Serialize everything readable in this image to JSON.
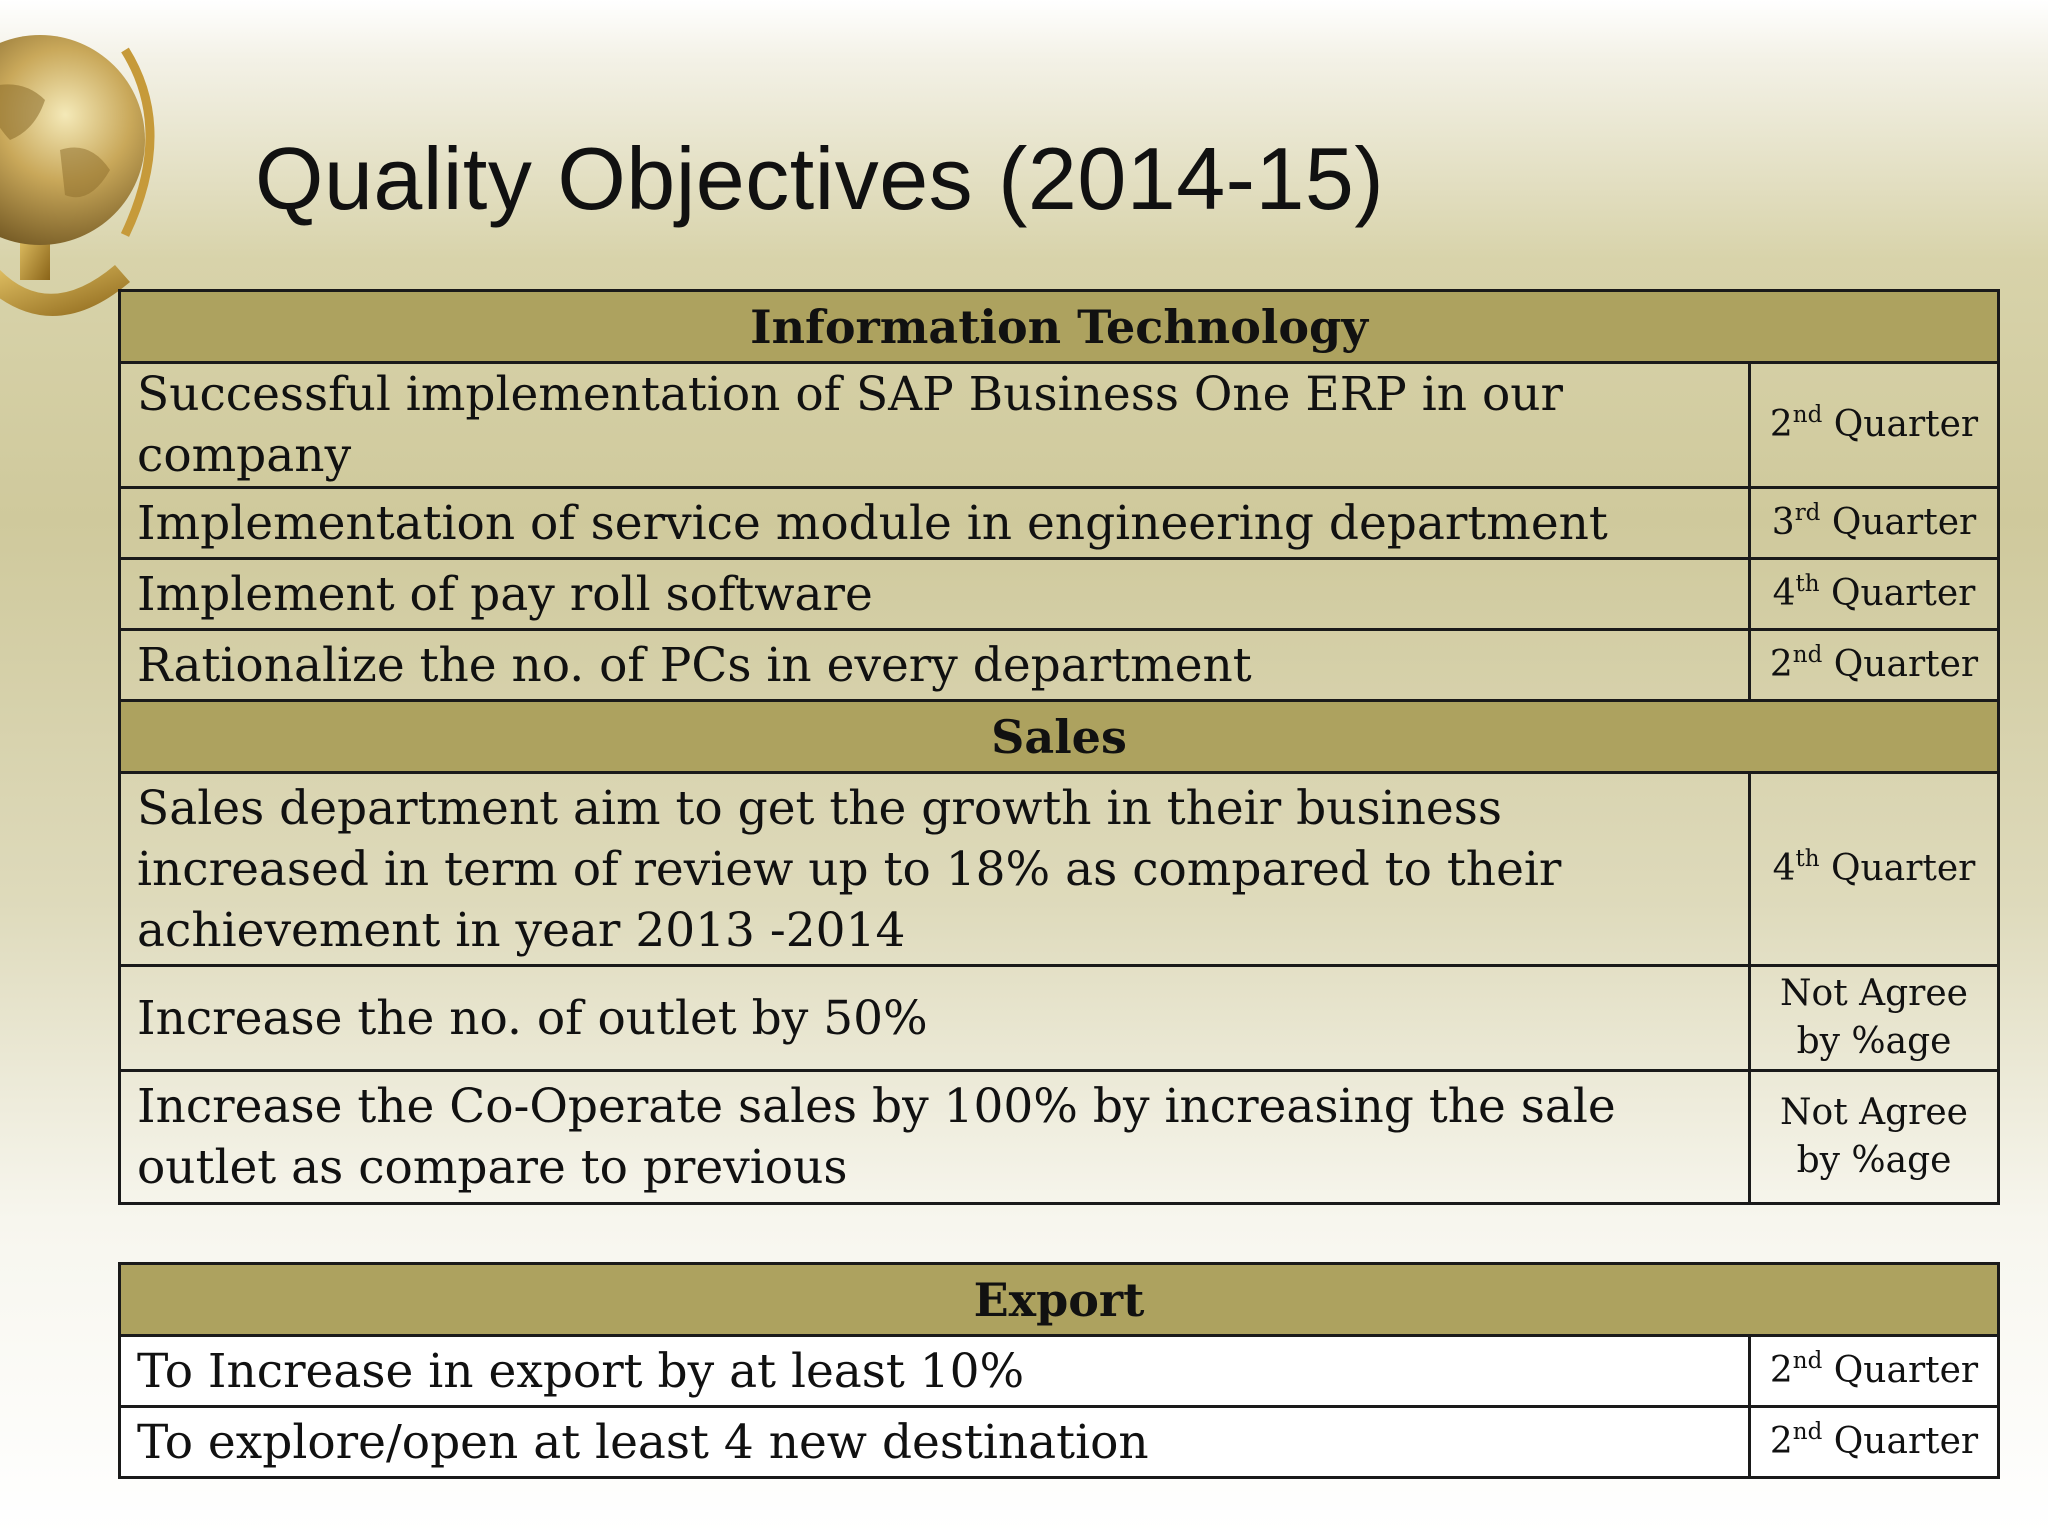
{
  "title": "Quality Objectives  (2014-15)",
  "icons": {
    "globe": "globe-icon"
  },
  "colors": {
    "header_bg": "#ada25f",
    "border": "#1a1a1a"
  },
  "sections": {
    "it": {
      "header": "Information Technology",
      "rows": [
        {
          "objective": "Successful implementation of SAP Business One ERP in our company",
          "ord": "2",
          "sup": "nd",
          "quarter": "Quarter"
        },
        {
          "objective": "Implementation of service module in engineering department",
          "ord": "3",
          "sup": "rd",
          "quarter": "Quarter"
        },
        {
          "objective": "Implement of pay roll software",
          "ord": "4",
          "sup": "th",
          "quarter": "Quarter"
        },
        {
          "objective": "Rationalize the no. of PCs in every department",
          "ord": "2",
          "sup": "nd",
          "quarter": "Quarter"
        }
      ]
    },
    "sales": {
      "header": "Sales",
      "rows": [
        {
          "objective": "Sales department aim to get the growth in their business increased in term of review up to 18% as compared to their achievement in year 2013 -2014",
          "ord": "4",
          "sup": "th",
          "quarter": "Quarter"
        },
        {
          "objective": "Increase the no. of outlet by 50%",
          "status_line1": "Not Agree",
          "status_line2": "by %age"
        },
        {
          "objective": "Increase the Co-Operate sales by 100% by increasing the sale outlet as compare to previous",
          "status_line1": "Not Agree",
          "status_line2": "by %age"
        }
      ]
    },
    "export": {
      "header": "Export",
      "rows": [
        {
          "objective": "To Increase in export by at least 10%",
          "ord": "2",
          "sup": "nd",
          "quarter": "Quarter"
        },
        {
          "objective": "To explore/open at least 4 new destination",
          "ord": "2",
          "sup": "nd",
          "quarter": "Quarter"
        }
      ]
    }
  }
}
